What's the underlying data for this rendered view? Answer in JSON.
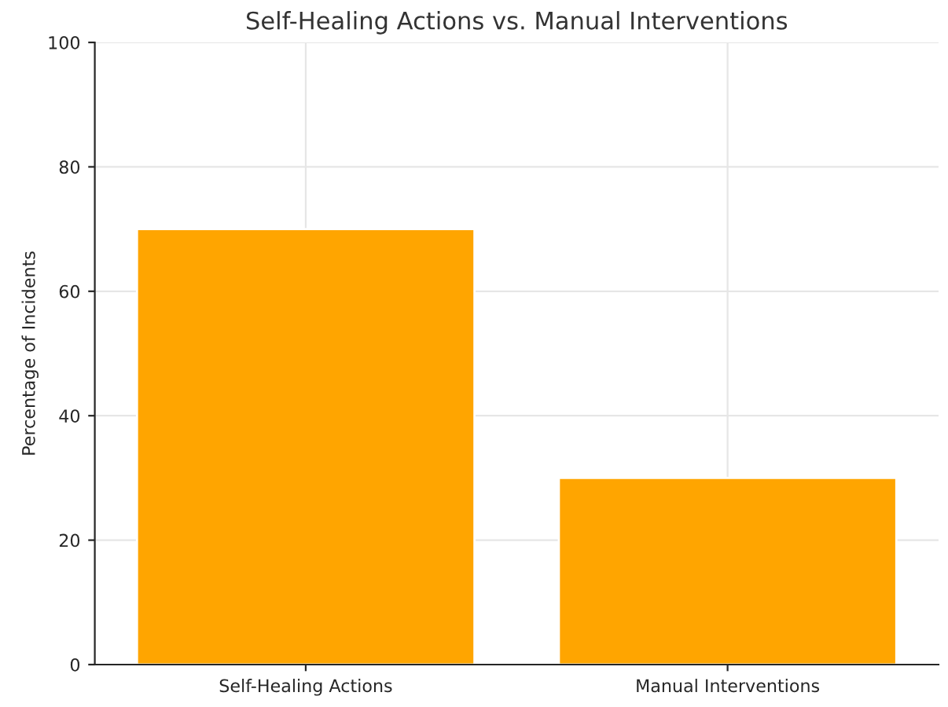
{
  "chart_data": {
    "type": "bar",
    "title": "Self-Healing Actions vs. Manual Interventions",
    "ylabel": "Percentage of Incidents",
    "categories": [
      "Self-Healing Actions",
      "Manual Interventions"
    ],
    "values": [
      70,
      30
    ],
    "color": "#ffa500",
    "ylim": [
      0,
      100
    ],
    "yticks": [
      0,
      20,
      40,
      60,
      80,
      100
    ],
    "grid": true
  }
}
